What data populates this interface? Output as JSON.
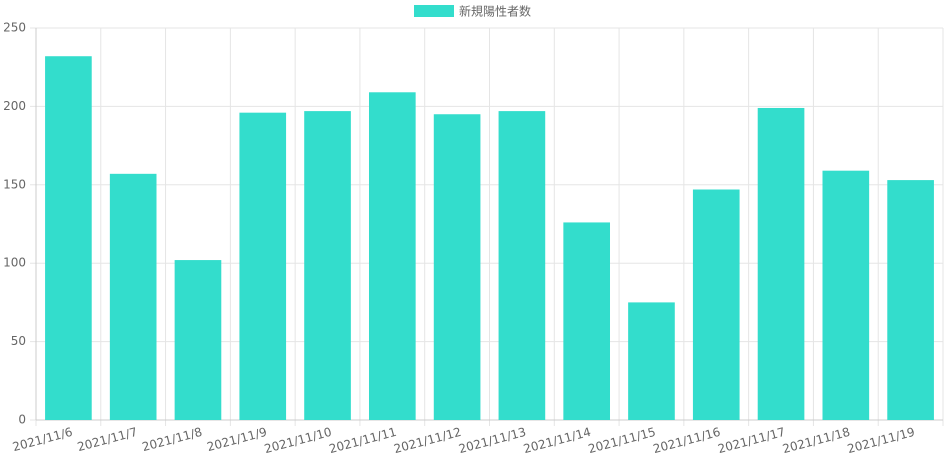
{
  "chart_data": {
    "type": "bar",
    "categories": [
      "2021/11/6",
      "2021/11/7",
      "2021/11/8",
      "2021/11/9",
      "2021/11/10",
      "2021/11/11",
      "2021/11/12",
      "2021/11/13",
      "2021/11/14",
      "2021/11/15",
      "2021/11/16",
      "2021/11/17",
      "2021/11/18",
      "2021/11/19"
    ],
    "series": [
      {
        "name": "新規陽性者数",
        "color": "#33ddcc",
        "values": [
          232,
          157,
          102,
          196,
          197,
          209,
          195,
          197,
          126,
          75,
          147,
          199,
          159,
          153
        ]
      }
    ],
    "ylim": [
      0,
      250
    ],
    "yticks": [
      0,
      50,
      100,
      150,
      200,
      250
    ],
    "grid": true,
    "legend": "top"
  }
}
